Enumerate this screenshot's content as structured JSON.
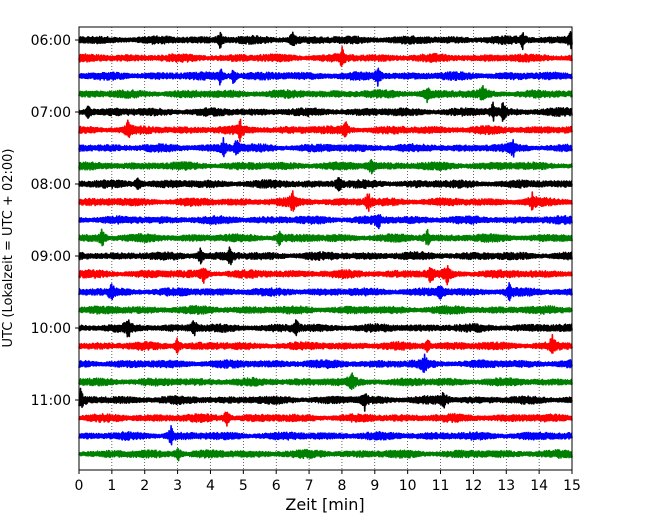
{
  "chart_data": {
    "type": "line",
    "subtype": "helicorder-seismogram",
    "title": "",
    "xlabel": "Zeit  [min]",
    "ylabel": "UTC (Lokalzeit = UTC + 02:00)",
    "xlim": [
      0,
      15
    ],
    "x_ticks": [
      0,
      1,
      2,
      3,
      4,
      5,
      6,
      7,
      8,
      9,
      10,
      11,
      12,
      13,
      14,
      15
    ],
    "x_gridlines": "dotted vertical at every minute",
    "y_tick_labels": [
      "06:00",
      "07:00",
      "08:00",
      "09:00",
      "10:00",
      "11:00"
    ],
    "trace_interval_minutes": 15,
    "trace_color_cycle": [
      "#000000",
      "#ff0000",
      "#0000ff",
      "#008000"
    ],
    "series": [
      {
        "start": "06:00",
        "color": "#000000",
        "events_min": [
          4.3,
          6.5,
          13.5,
          14.95
        ]
      },
      {
        "start": "06:15",
        "color": "#ff0000",
        "events_min": [
          8.0
        ]
      },
      {
        "start": "06:30",
        "color": "#0000ff",
        "events_min": [
          4.3,
          4.7,
          9.1
        ]
      },
      {
        "start": "06:45",
        "color": "#008000",
        "events_min": [
          10.6,
          12.3
        ]
      },
      {
        "start": "07:00",
        "color": "#000000",
        "events_min": [
          0.3,
          12.6,
          12.9
        ]
      },
      {
        "start": "07:15",
        "color": "#ff0000",
        "events_min": [
          1.5,
          4.9,
          8.1
        ]
      },
      {
        "start": "07:30",
        "color": "#0000ff",
        "events_min": [
          4.4,
          4.8,
          13.2
        ]
      },
      {
        "start": "07:45",
        "color": "#008000",
        "events_min": [
          8.9
        ]
      },
      {
        "start": "08:00",
        "color": "#000000",
        "events_min": [
          1.8,
          7.9
        ]
      },
      {
        "start": "08:15",
        "color": "#ff0000",
        "events_min": [
          6.5,
          8.8,
          13.8
        ]
      },
      {
        "start": "08:30",
        "color": "#0000ff",
        "events_min": [
          9.1
        ]
      },
      {
        "start": "08:45",
        "color": "#008000",
        "events_min": [
          0.7,
          6.1,
          10.6
        ]
      },
      {
        "start": "09:00",
        "color": "#000000",
        "events_min": [
          3.7,
          4.6
        ]
      },
      {
        "start": "09:15",
        "color": "#ff0000",
        "events_min": [
          3.8,
          10.7,
          11.2
        ]
      },
      {
        "start": "09:30",
        "color": "#0000ff",
        "events_min": [
          1.0,
          11.0,
          13.1
        ]
      },
      {
        "start": "09:45",
        "color": "#008000",
        "events_min": []
      },
      {
        "start": "10:00",
        "color": "#000000",
        "events_min": [
          1.5,
          3.5,
          6.6
        ]
      },
      {
        "start": "10:15",
        "color": "#ff0000",
        "events_min": [
          3.0,
          10.6,
          14.4
        ]
      },
      {
        "start": "10:30",
        "color": "#0000ff",
        "events_min": [
          10.5
        ]
      },
      {
        "start": "10:45",
        "color": "#008000",
        "events_min": [
          8.3
        ]
      },
      {
        "start": "11:00",
        "color": "#000000",
        "events_min": [
          0.05,
          8.7,
          11.1
        ]
      },
      {
        "start": "11:15",
        "color": "#ff0000",
        "events_min": [
          4.5
        ]
      },
      {
        "start": "11:30",
        "color": "#0000ff",
        "events_min": [
          2.8
        ]
      },
      {
        "start": "11:45",
        "color": "#008000",
        "events_min": [
          3.0
        ]
      }
    ]
  }
}
